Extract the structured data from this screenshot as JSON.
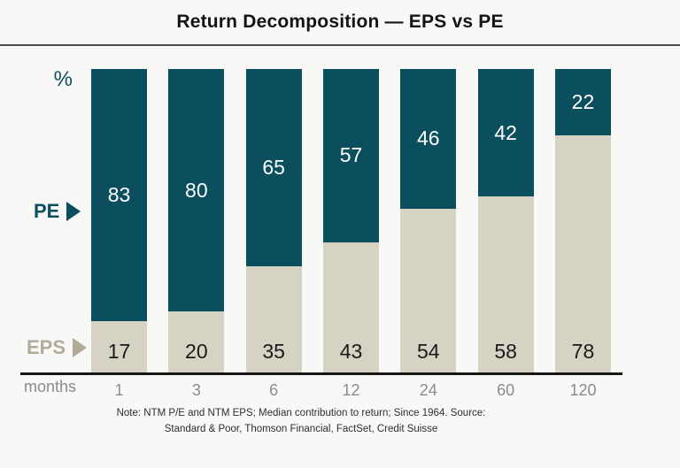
{
  "title": "Return Decomposition — EPS vs PE",
  "axis": {
    "y_unit": "%",
    "x_title": "months"
  },
  "legend": {
    "pe_label": "PE",
    "eps_label": "EPS"
  },
  "colors": {
    "pe": "#0b4f5e",
    "eps": "#d6d2c4",
    "pe_value_text": "#ffffff",
    "eps_value_text": "#1a1a1a",
    "eps_legend_text": "#b2ab9a",
    "tick_text": "#8b8b8b",
    "background": "#f8f8f6"
  },
  "chart_data": {
    "type": "bar",
    "stacked": true,
    "title": "Return Decomposition — EPS vs PE",
    "xlabel": "months",
    "ylabel": "%",
    "ylim": [
      0,
      100
    ],
    "grid": false,
    "legend_position": "left-arrows",
    "categories": [
      "1",
      "3",
      "6",
      "12",
      "24",
      "60",
      "120"
    ],
    "series": [
      {
        "name": "PE",
        "color": "#0b4f5e",
        "values": [
          83,
          80,
          65,
          57,
          46,
          42,
          22
        ]
      },
      {
        "name": "EPS",
        "color": "#d6d2c4",
        "values": [
          17,
          20,
          35,
          43,
          54,
          58,
          78
        ]
      }
    ]
  },
  "note": {
    "line1": "Note: NTM P/E and NTM EPS; Median contribution to return; Since 1964. Source:",
    "line2": "Standard & Poor, Thomson Financial, FactSet, Credit Suisse"
  }
}
